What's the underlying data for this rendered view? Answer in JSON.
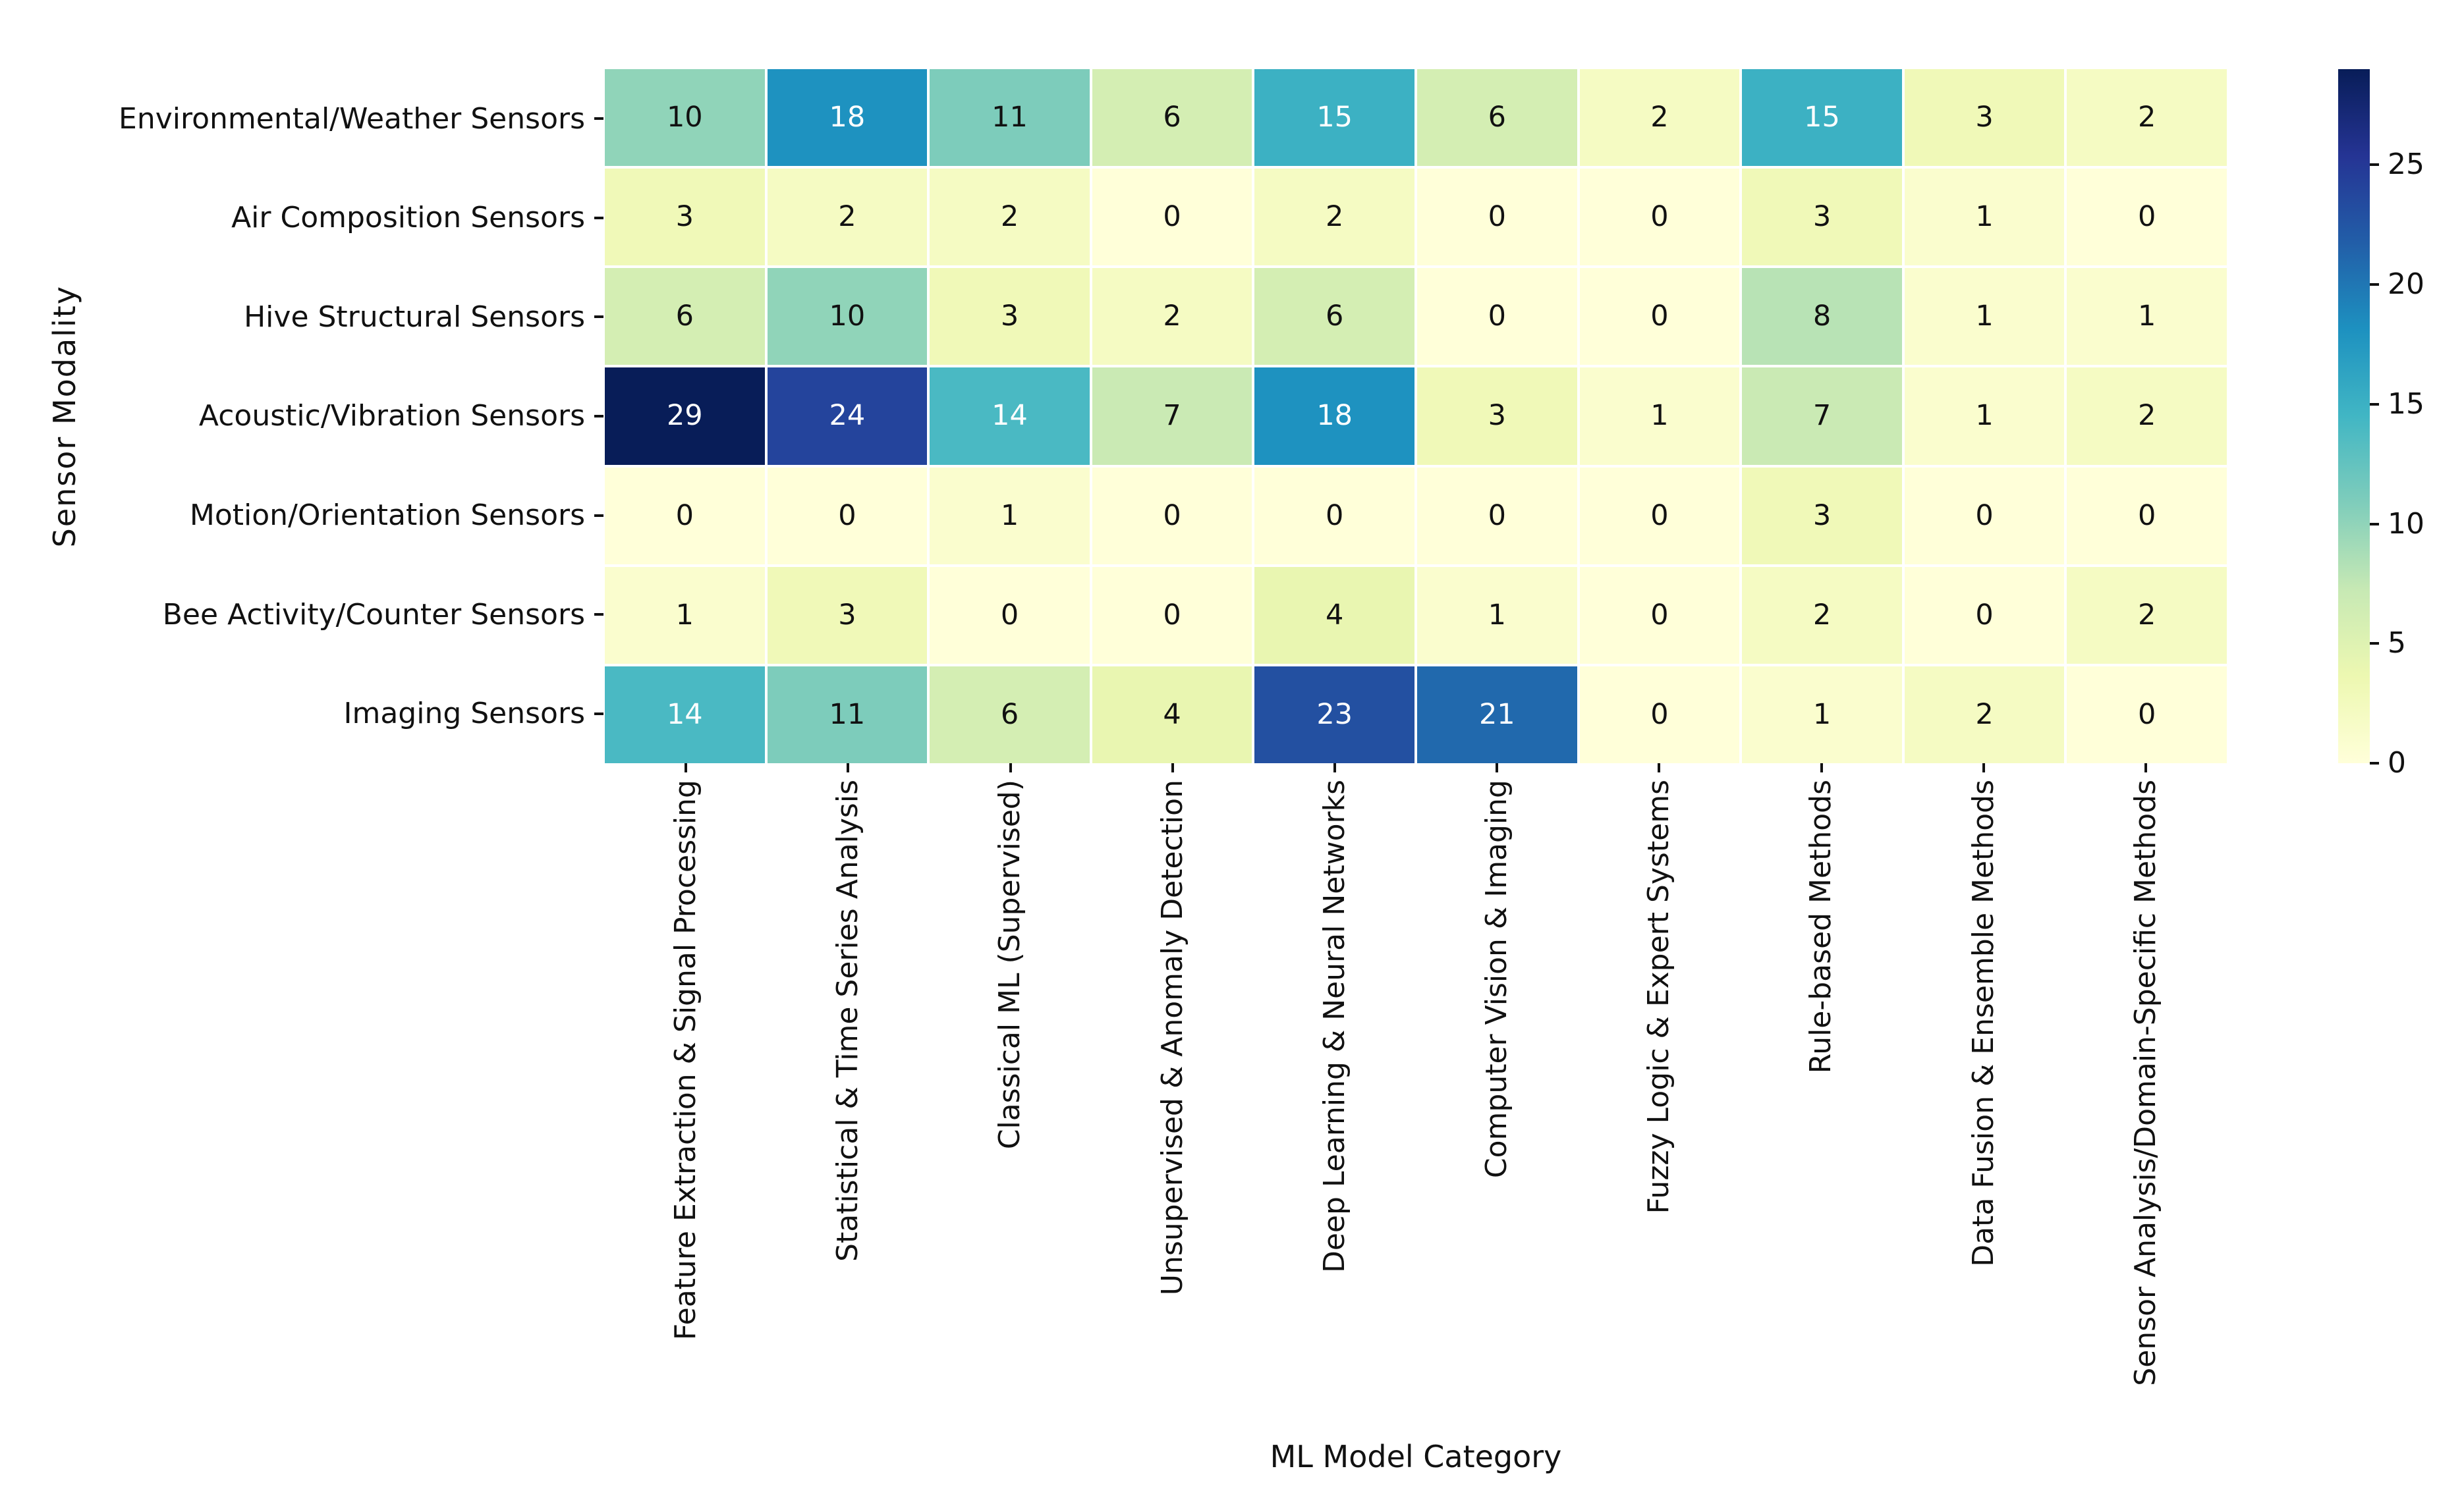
{
  "figure": {
    "background": "#ffffff",
    "text_color": "#111111"
  },
  "chart_data": {
    "type": "heatmap",
    "title": "",
    "xlabel": "ML Model Category",
    "ylabel": "Sensor Modality",
    "rows": [
      "Environmental/Weather Sensors",
      "Air Composition Sensors",
      "Hive Structural Sensors",
      "Acoustic/Vibration Sensors",
      "Motion/Orientation Sensors",
      "Bee Activity/Counter Sensors",
      "Imaging Sensors"
    ],
    "columns": [
      "Feature Extraction & Signal Processing",
      "Statistical & Time Series Analysis",
      "Classical ML (Supervised)",
      "Unsupervised & Anomaly Detection",
      "Deep Learning & Neural Networks",
      "Computer Vision & Imaging",
      "Fuzzy Logic & Expert Systems",
      "Rule-based Methods",
      "Data Fusion & Ensemble Methods",
      "Sensor Analysis/Domain-Specific Methods"
    ],
    "values": [
      [
        10,
        18,
        11,
        6,
        15,
        6,
        2,
        15,
        3,
        2
      ],
      [
        3,
        2,
        2,
        0,
        2,
        0,
        0,
        3,
        1,
        0
      ],
      [
        6,
        10,
        3,
        2,
        6,
        0,
        0,
        8,
        1,
        1
      ],
      [
        29,
        24,
        14,
        7,
        18,
        3,
        1,
        7,
        1,
        2
      ],
      [
        0,
        0,
        1,
        0,
        0,
        0,
        0,
        3,
        0,
        0
      ],
      [
        1,
        3,
        0,
        0,
        4,
        1,
        0,
        2,
        0,
        2
      ],
      [
        14,
        11,
        6,
        4,
        23,
        21,
        0,
        1,
        2,
        0
      ]
    ],
    "vmin": 0,
    "vmax": 29,
    "annotated": true,
    "grid_on": false,
    "legend_position": "colorbar-right",
    "colormap": {
      "name": "YlGnBu",
      "stops": [
        "#ffffd9",
        "#edf8b1",
        "#c7e9b4",
        "#7fcdbb",
        "#41b6c4",
        "#1d91c0",
        "#225ea8",
        "#253494",
        "#081d58"
      ]
    },
    "colorbar_ticks": [
      0,
      5,
      10,
      15,
      20,
      25
    ],
    "cell_gap_color": "#ffffff",
    "annotation_color_dark": "#111111",
    "annotation_color_light": "#ffffff"
  }
}
